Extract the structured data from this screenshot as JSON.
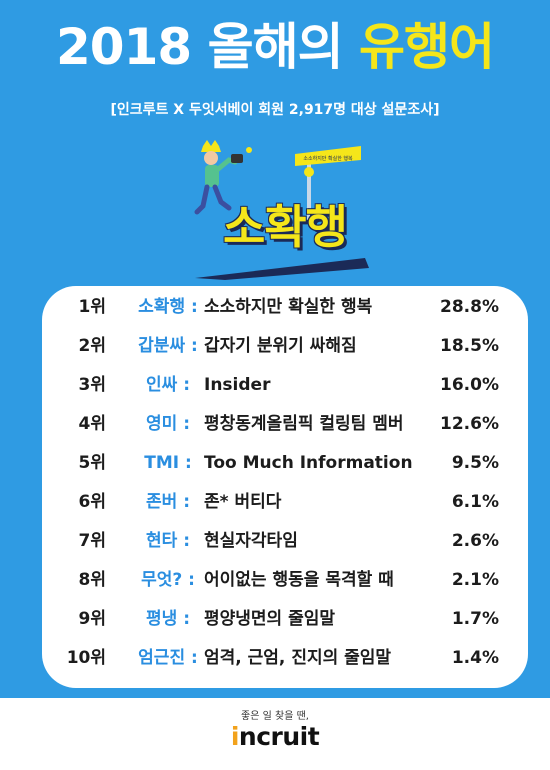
{
  "header": {
    "title_white": "2018 올해의",
    "title_yellow": "유행어",
    "subtitle": "[인크루트 X 두잇서베이 회원 2,917명 대상 설문조사]"
  },
  "illustration": {
    "headline": "소확행",
    "sign_text": "소소하지만 확실한 행복"
  },
  "rankings": [
    {
      "rank": "1위",
      "term": "소확행 :",
      "meaning": "소소하지만 확실한 행복",
      "pct": "28.8%"
    },
    {
      "rank": "2위",
      "term": "갑분싸 :",
      "meaning": "갑자기 분위기 싸해짐",
      "pct": "18.5%"
    },
    {
      "rank": "3위",
      "term": "인싸 :",
      "meaning": "Insider",
      "pct": "16.0%"
    },
    {
      "rank": "4위",
      "term": "영미 :",
      "meaning": "평창동계올림픽 컬링팀 멤버",
      "pct": "12.6%"
    },
    {
      "rank": "5위",
      "term": "TMI :",
      "meaning": "Too Much Information",
      "pct": "9.5%"
    },
    {
      "rank": "6위",
      "term": "존버 :",
      "meaning": "존* 버티다",
      "pct": "6.1%"
    },
    {
      "rank": "7위",
      "term": "현타 :",
      "meaning": "현실자각타임",
      "pct": "2.6%"
    },
    {
      "rank": "8위",
      "term": "무엇? :",
      "meaning": "어이없는 행동을 목격할 때",
      "pct": "2.1%"
    },
    {
      "rank": "9위",
      "term": "평냉 :",
      "meaning": "평양냉면의 줄임말",
      "pct": "1.7%"
    },
    {
      "rank": "10위",
      "term": "엄근진 :",
      "meaning": "엄격, 근엄, 진지의 줄임말",
      "pct": "1.4%"
    }
  ],
  "footer": {
    "slogan": "좋은 일 찾을 땐,",
    "logo_dot": "i",
    "logo_rest": "ncruit"
  },
  "colors": {
    "background_blue": "#2f9be3",
    "accent_yellow": "#f5e61a",
    "term_blue": "#2a8ee0",
    "navy": "#1b2a57",
    "logo_orange": "#f2a21c"
  }
}
